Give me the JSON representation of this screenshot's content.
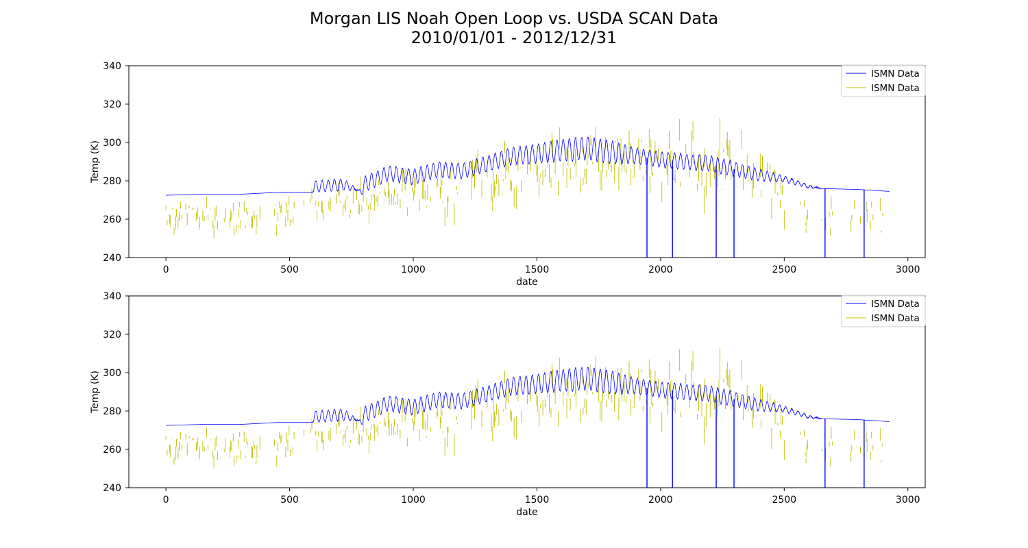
{
  "chart_data": {
    "title": "Morgan LIS Noah Open Loop vs. USDA SCAN Data",
    "subtitle": "2010/01/01 - 2012/12/31",
    "colors": {
      "series_0": "#0000ff",
      "series_1": "#bfbf00",
      "axes": "#000000"
    },
    "panels": [
      {
        "type": "line",
        "xlabel": "date",
        "ylabel": "Temp (K)",
        "xlim": [
          -150,
          3070
        ],
        "ylim": [
          240,
          340
        ],
        "xticks": [
          0,
          500,
          1000,
          1500,
          2000,
          2500,
          3000
        ],
        "yticks": [
          240,
          260,
          280,
          300,
          320,
          340
        ],
        "legend_position": "top-right",
        "series": [
          {
            "name": "ISMN Data",
            "color": "#0000ff",
            "description": "LIS Noah open loop soil temperature, nearly continuous, with downward spikes to axis floor"
          },
          {
            "name": "ISMN Data",
            "color": "#bfbf00",
            "description": "USDA SCAN observed soil temperature, sparse vertical strokes"
          }
        ]
      },
      {
        "type": "line",
        "xlabel": "date",
        "ylabel": "Temp (K)",
        "xlim": [
          -150,
          3070
        ],
        "ylim": [
          240,
          340
        ],
        "xticks": [
          0,
          500,
          1000,
          1500,
          2000,
          2500,
          3000
        ],
        "yticks": [
          240,
          260,
          280,
          300,
          320,
          340
        ],
        "legend_position": "top-right",
        "series": [
          {
            "name": "ISMN Data",
            "color": "#0000ff",
            "description": "LIS Noah open loop soil temperature, nearly continuous, with downward spikes to axis floor"
          },
          {
            "name": "ISMN Data",
            "color": "#bfbf00",
            "description": "USDA SCAN observed soil temperature, sparse vertical strokes"
          }
        ]
      }
    ],
    "model_series": {
      "x_range": [
        0,
        2925
      ],
      "baseline_points": [
        [
          0,
          272.5
        ],
        [
          150,
          273
        ],
        [
          300,
          273
        ],
        [
          450,
          274
        ],
        [
          590,
          274
        ],
        [
          600,
          277
        ],
        [
          720,
          278
        ],
        [
          790,
          274.5
        ],
        [
          800,
          278
        ],
        [
          900,
          284
        ],
        [
          1000,
          282
        ],
        [
          1100,
          286
        ],
        [
          1200,
          285
        ],
        [
          1300,
          289
        ],
        [
          1400,
          293
        ],
        [
          1500,
          294
        ],
        [
          1600,
          296
        ],
        [
          1700,
          297
        ],
        [
          1800,
          295
        ],
        [
          1900,
          293
        ],
        [
          2000,
          291
        ],
        [
          2100,
          290
        ],
        [
          2200,
          289
        ],
        [
          2300,
          286
        ],
        [
          2400,
          283
        ],
        [
          2500,
          281
        ],
        [
          2600,
          277
        ],
        [
          2650,
          276
        ],
        [
          2800,
          275.5
        ],
        [
          2925,
          274.5
        ]
      ],
      "oscillation_points": [
        [
          0,
          0
        ],
        [
          590,
          0
        ],
        [
          600,
          3
        ],
        [
          720,
          3
        ],
        [
          780,
          0
        ],
        [
          800,
          4
        ],
        [
          900,
          4
        ],
        [
          1000,
          4
        ],
        [
          1300,
          4
        ],
        [
          1500,
          5
        ],
        [
          1650,
          6
        ],
        [
          1800,
          6
        ],
        [
          1900,
          4
        ],
        [
          2100,
          4
        ],
        [
          2250,
          4
        ],
        [
          2400,
          3
        ],
        [
          2500,
          1.5
        ],
        [
          2600,
          0.8
        ],
        [
          2650,
          0
        ],
        [
          2925,
          0
        ]
      ],
      "oscillation_period": 25,
      "drop_to_floor_at": [
        1945,
        2048,
        2225,
        2297,
        2665,
        2823
      ],
      "final_value": 274.5
    },
    "obs_series": {
      "x_range": [
        0,
        2900
      ],
      "center_points": [
        [
          0,
          259
        ],
        [
          200,
          261
        ],
        [
          400,
          261
        ],
        [
          600,
          265
        ],
        [
          800,
          270
        ],
        [
          1000,
          274
        ],
        [
          1100,
          275
        ],
        [
          1250,
          280
        ],
        [
          1400,
          285
        ],
        [
          1500,
          288
        ],
        [
          1700,
          291
        ],
        [
          1900,
          292
        ],
        [
          2000,
          289
        ],
        [
          2100,
          288
        ],
        [
          2200,
          290
        ],
        [
          2300,
          285
        ],
        [
          2400,
          283
        ],
        [
          2470,
          280
        ],
        [
          2500,
          264
        ],
        [
          2700,
          260
        ],
        [
          2900,
          260
        ]
      ],
      "spread_points": [
        [
          0,
          6
        ],
        [
          500,
          6
        ],
        [
          1000,
          8
        ],
        [
          1250,
          12
        ],
        [
          1500,
          10
        ],
        [
          1800,
          10
        ],
        [
          2000,
          12
        ],
        [
          2200,
          14
        ],
        [
          2400,
          12
        ],
        [
          2600,
          7
        ],
        [
          2900,
          6
        ]
      ],
      "gaps": [
        [
          385,
          435
        ],
        [
          520,
          555
        ],
        [
          1180,
          1225
        ],
        [
          2520,
          2560
        ],
        [
          2600,
          2650
        ],
        [
          2700,
          2760
        ],
        [
          2860,
          2880
        ]
      ]
    }
  }
}
